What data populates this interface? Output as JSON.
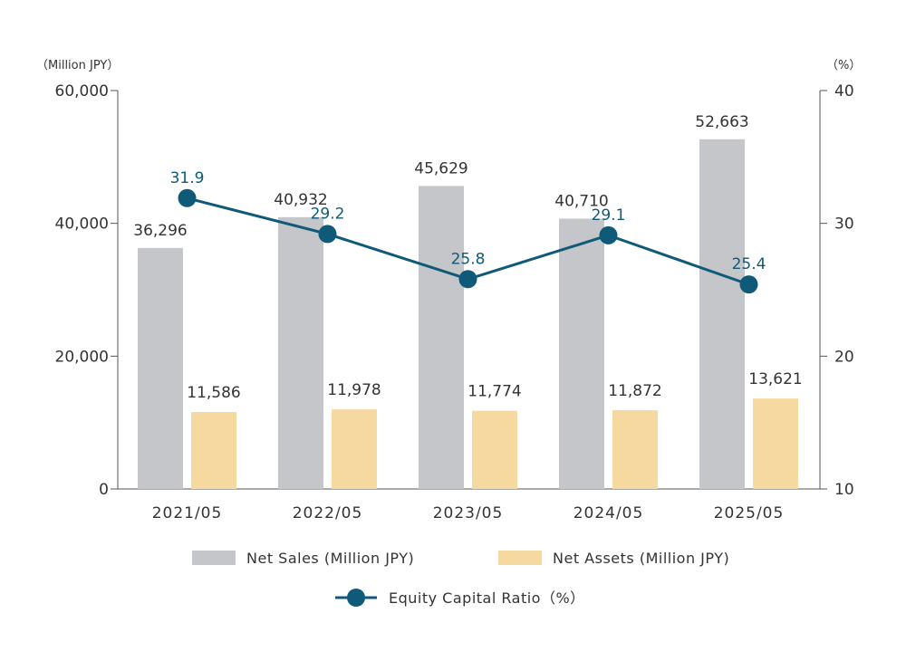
{
  "chart_data": {
    "type": "bar-line-combo",
    "categories": [
      "2021/05",
      "2022/05",
      "2023/05",
      "2024/05",
      "2025/05"
    ],
    "series": [
      {
        "name": "Net Sales (Million JPY)",
        "type": "bar",
        "axis": "left",
        "color": "#c4c6c9",
        "values": [
          36296,
          40932,
          45629,
          40710,
          52663
        ],
        "labels": [
          "36,296",
          "40,932",
          "45,629",
          "40,710",
          "52,663"
        ]
      },
      {
        "name": "Net Assets (Million JPY)",
        "type": "bar",
        "axis": "left",
        "color": "#f5d9a0",
        "values": [
          11586,
          11978,
          11774,
          11872,
          13621
        ],
        "labels": [
          "11,586",
          "11,978",
          "11,774",
          "11,872",
          "13,621"
        ]
      },
      {
        "name": "Equity Capital Ratio",
        "type": "line",
        "axis": "right",
        "color": "#0e5a78",
        "values": [
          31.9,
          29.2,
          25.8,
          29.1,
          25.4
        ],
        "labels": [
          "31.9",
          "29.2",
          "25.8",
          "29.1",
          "25.4"
        ]
      }
    ],
    "left_axis": {
      "unit_label": "（Million JPY）",
      "range": [
        0,
        60000
      ],
      "ticks": [
        0,
        20000,
        40000,
        60000
      ],
      "tick_labels": [
        "0",
        "20,000",
        "40,000",
        "60,000"
      ]
    },
    "right_axis": {
      "unit_label": "（%）",
      "range": [
        10,
        40
      ],
      "ticks": [
        10,
        20,
        30,
        40
      ],
      "tick_labels": [
        "10",
        "20",
        "30",
        "40"
      ]
    },
    "legend": {
      "placement": "bottom",
      "items": [
        {
          "label": "Net Sales (Million JPY)",
          "swatch": "bar",
          "color": "#c4c6c9"
        },
        {
          "label": "Net Assets (Million JPY)",
          "swatch": "bar",
          "color": "#f5d9a0"
        },
        {
          "label": "Equity Capital Ratio（%）",
          "swatch": "line-marker",
          "color": "#0e5a78"
        }
      ]
    },
    "grid": false
  }
}
